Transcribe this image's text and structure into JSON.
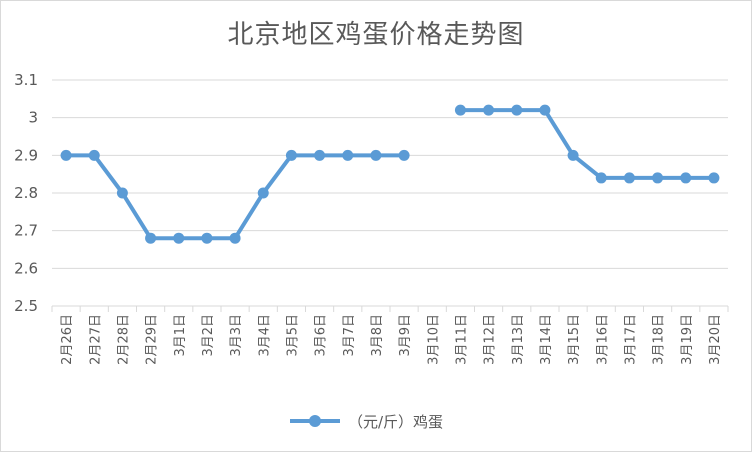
{
  "chart_data": {
    "type": "line",
    "title": "北京地区鸡蛋价格走势图",
    "categories": [
      "2月26日",
      "2月27日",
      "2月28日",
      "2月29日",
      "3月1日",
      "3月2日",
      "3月3日",
      "3月4日",
      "3月5日",
      "3月6日",
      "3月7日",
      "3月8日",
      "3月9日",
      "3月10日",
      "3月11日",
      "3月12日",
      "3月13日",
      "3月14日",
      "3月15日",
      "3月16日",
      "3月17日",
      "3月18日",
      "3月19日",
      "3月20日"
    ],
    "series": [
      {
        "name": "（元/斤）鸡蛋",
        "color": "#5b9bd5",
        "values": [
          2.9,
          2.9,
          2.8,
          2.68,
          2.68,
          2.68,
          2.68,
          2.8,
          2.9,
          2.9,
          2.9,
          2.9,
          2.9,
          null,
          3.02,
          3.02,
          3.02,
          3.02,
          2.9,
          2.84,
          2.84,
          2.84,
          2.84,
          2.84
        ]
      }
    ],
    "y_ticks": [
      "2.5",
      "2.6",
      "2.7",
      "2.8",
      "2.9",
      "3",
      "3.1"
    ],
    "ylim": [
      2.5,
      3.1
    ],
    "grid": true,
    "legend_position": "bottom",
    "xlabel": "",
    "ylabel": ""
  }
}
